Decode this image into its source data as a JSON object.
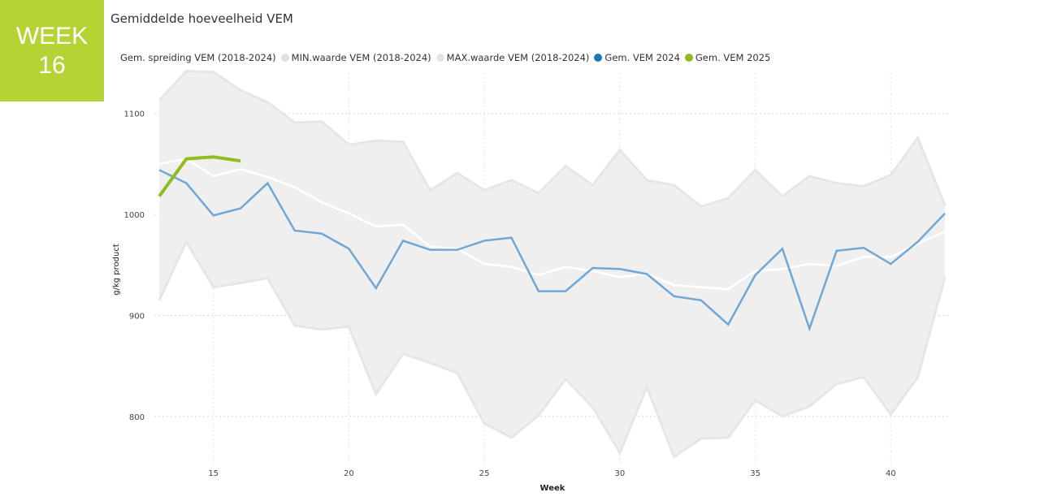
{
  "badge": {
    "line1": "WEEK",
    "line2": "16"
  },
  "chart_data": {
    "type": "line",
    "title": "Gemiddelde hoeveelheid VEM",
    "xlabel": "Week",
    "ylabel": "g/kg product",
    "xlim": [
      13,
      42
    ],
    "ylim": [
      750,
      1140
    ],
    "xticks": [
      15,
      20,
      25,
      30,
      35,
      40
    ],
    "yticks": [
      800,
      900,
      1000,
      1100
    ],
    "grid": true,
    "legend_position": "top",
    "legend": [
      {
        "label": "Gem. spreiding VEM (2018-2024)",
        "color": "",
        "show_dot": false
      },
      {
        "label": "MIN.waarde VEM (2018-2024)",
        "color": "#e0e0e0",
        "show_dot": true
      },
      {
        "label": "MAX.waarde VEM (2018-2024)",
        "color": "#e6e1ea",
        "show_dot": true
      },
      {
        "label": "Gem. VEM 2024",
        "color": "#1f77b4",
        "show_dot": true
      },
      {
        "label": "Gem. VEM 2025",
        "color": "#8fbd1e",
        "show_dot": true
      }
    ],
    "x": [
      13,
      14,
      15,
      16,
      17,
      18,
      19,
      20,
      21,
      22,
      23,
      24,
      25,
      26,
      27,
      28,
      29,
      30,
      31,
      32,
      33,
      34,
      35,
      36,
      37,
      38,
      39,
      40,
      41,
      42
    ],
    "series": [
      {
        "name": "MAX.waarde VEM (2018-2024)",
        "color": "#e6e6e6",
        "values": [
          1113,
          1142,
          1141,
          1123,
          1111,
          1091,
          1092,
          1069,
          1073,
          1072,
          1024,
          1041,
          1024,
          1034,
          1021,
          1048,
          1029,
          1064,
          1034,
          1029,
          1008,
          1016,
          1044,
          1018,
          1038,
          1031,
          1028,
          1039,
          1076,
          1009
        ]
      },
      {
        "name": "MIN.waarde VEM (2018-2024)",
        "color": "#e6e6e6",
        "values": [
          915,
          973,
          928,
          932,
          937,
          890,
          886,
          889,
          822,
          862,
          853,
          843,
          793,
          779,
          801,
          837,
          809,
          764,
          829,
          760,
          778,
          779,
          816,
          800,
          810,
          832,
          839,
          802,
          839,
          938
        ]
      },
      {
        "name": "Gem. spreiding VEM (2018-2024)",
        "color": "#ffffff",
        "values": [
          1050,
          1055,
          1038,
          1045,
          1037,
          1027,
          1012,
          1001,
          988,
          990,
          968,
          966,
          951,
          948,
          940,
          948,
          944,
          938,
          941,
          930,
          928,
          926,
          944,
          946,
          951,
          949,
          958,
          958,
          971,
          983
        ]
      },
      {
        "name": "Gem. VEM 2024",
        "color": "#6fa8d6",
        "values": [
          1044,
          1031,
          999,
          1006,
          1031,
          984,
          981,
          966,
          927,
          974,
          965,
          965,
          974,
          977,
          924,
          924,
          947,
          946,
          941,
          919,
          915,
          891,
          940,
          966,
          887,
          964,
          967,
          951,
          973,
          1001
        ]
      },
      {
        "name": "Gem. VEM 2025",
        "color": "#8fbd1e",
        "values": [
          1018,
          1055,
          1057,
          1053,
          null,
          null,
          null,
          null,
          null,
          null,
          null,
          null,
          null,
          null,
          null,
          null,
          null,
          null,
          null,
          null,
          null,
          null,
          null,
          null,
          null,
          null,
          null,
          null,
          null,
          null
        ]
      }
    ]
  }
}
